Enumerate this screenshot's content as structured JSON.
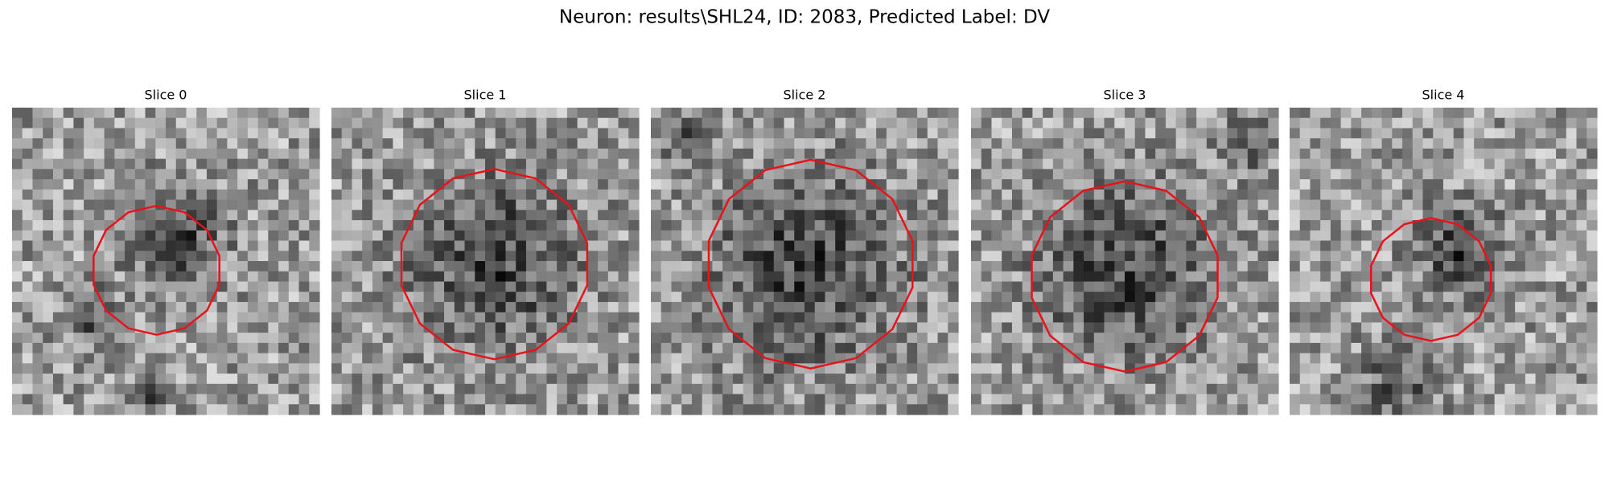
{
  "header": {
    "title": "Neuron: results\\SHL24, ID: 2083, Predicted Label: DV"
  },
  "panels": [
    {
      "title": "Slice 0"
    },
    {
      "title": "Slice 1"
    },
    {
      "title": "Slice 2"
    },
    {
      "title": "Slice 3"
    },
    {
      "title": "Slice 4"
    }
  ]
}
